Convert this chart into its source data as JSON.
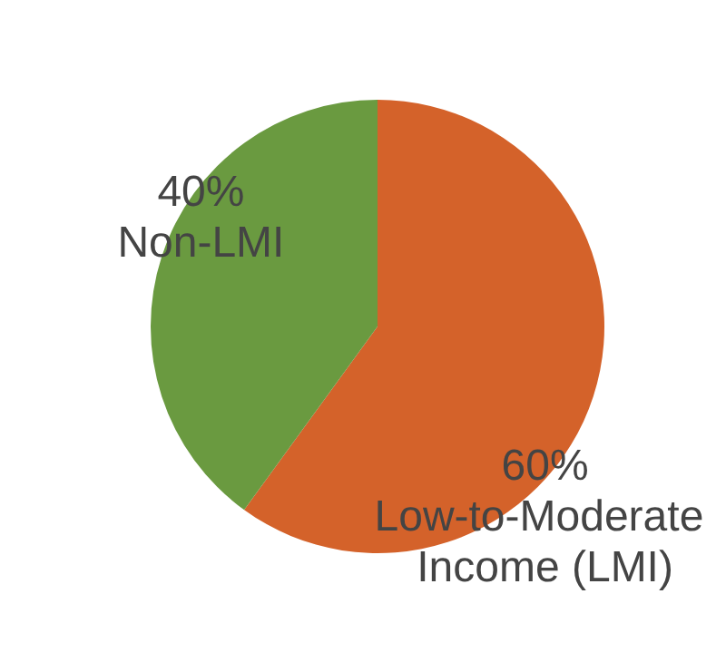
{
  "chart_data": {
    "type": "pie",
    "categories": [
      "Low-to-Moderate Income (LMI)",
      "Non-LMI"
    ],
    "values": [
      60,
      40
    ],
    "colors": [
      "#d4622a",
      "#6a9a40"
    ],
    "value_labels": [
      "60%",
      "40%"
    ]
  }
}
